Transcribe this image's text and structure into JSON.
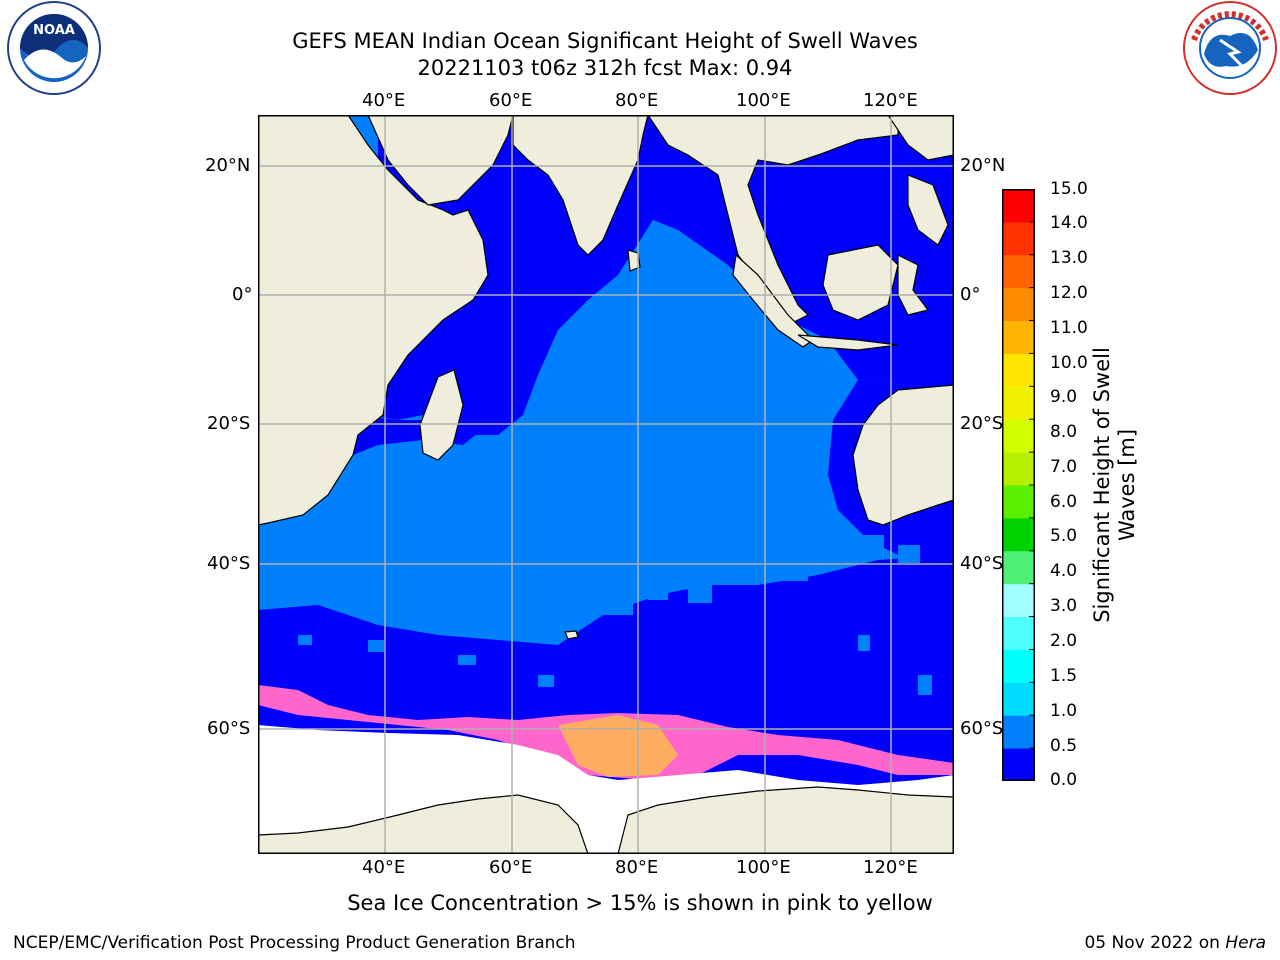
{
  "title": {
    "line1": "GEFS MEAN Indian Ocean Significant Height of Swell Waves",
    "line2": "20221103 t06z 312h fcst   Max: 0.94"
  },
  "axes": {
    "top_lon_labels": [
      "40°E",
      "60°E",
      "80°E",
      "100°E",
      "120°E"
    ],
    "bottom_lon_labels": [
      "40°E",
      "60°E",
      "80°E",
      "100°E",
      "120°E"
    ],
    "left_lat_labels": [
      "20°N",
      "0°",
      "20°S",
      "40°S",
      "60°S"
    ],
    "right_lat_labels": [
      "20°N",
      "0°",
      "20°S",
      "40°S",
      "60°S"
    ]
  },
  "colorbar": {
    "title_line1": "Significant Height of Swell",
    "title_line2": "Waves [m]",
    "tick_labels": [
      "0.0",
      "0.5",
      "1.0",
      "1.5",
      "2.0",
      "3.0",
      "4.0",
      "5.0",
      "6.0",
      "7.0",
      "8.0",
      "9.0",
      "10.0",
      "11.0",
      "12.0",
      "13.0",
      "14.0",
      "15.0"
    ],
    "colors": [
      "#0000ff",
      "#0080ff",
      "#00dcff",
      "#00ffff",
      "#50ffff",
      "#a0ffff",
      "#50f078",
      "#00d200",
      "#5af000",
      "#b4f000",
      "#d2ff00",
      "#f0f000",
      "#ffe600",
      "#ffb400",
      "#ff8c00",
      "#ff6400",
      "#ff3200",
      "#ff0000"
    ]
  },
  "colors": {
    "land": "#efeedd",
    "swell_low": "#0000ff",
    "swell_mid": "#0080ff",
    "sea_ice_pink": "#ff66cc",
    "sea_ice_yellow": "#ffcc33",
    "grid": "#b0b0b0"
  },
  "footer": {
    "note": "Sea Ice Concentration > 15% is shown in pink to yellow",
    "left": "NCEP/EMC/Verification Post Processing Product Generation Branch",
    "right_prefix": "05 Nov 2022 on ",
    "right_host": "Hera"
  },
  "logos": {
    "left_logo": "noaa-logo",
    "left_logo_text": "NOAA",
    "right_logo": "nws-logo",
    "right_logo_text": "NATIONAL WEATHER SERVICE"
  }
}
